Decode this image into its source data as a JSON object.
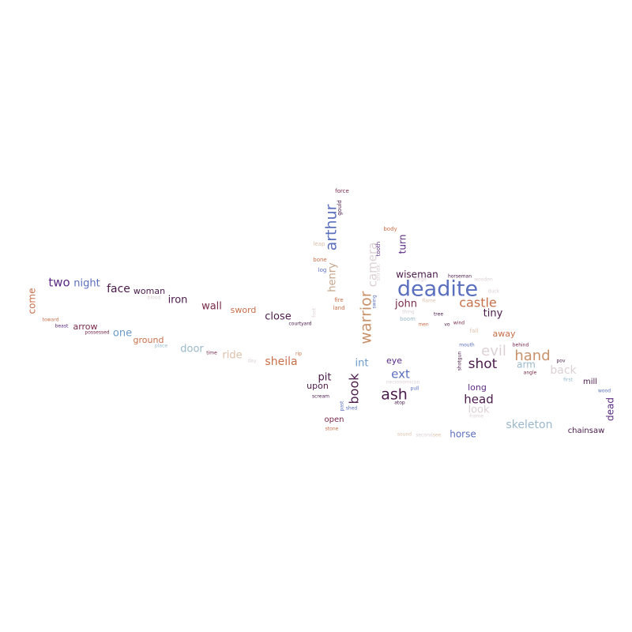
{
  "palette": {
    "blue": "#5b6fbf",
    "purple": "#5a2a82",
    "dark_plum": "#4a1a4a",
    "maroon": "#7a2a4a",
    "tan": "#c8a58a",
    "terracotta": "#c8704a",
    "light_blue": "#9ab8cc",
    "light_grey": "#ddd0d6"
  },
  "words": [
    {
      "text": "deadite",
      "color": "#5b6fbf"
    },
    {
      "text": "warrior",
      "color": "#c8926a"
    },
    {
      "text": "arthur",
      "color": "#5b6fbf"
    },
    {
      "text": "camera",
      "color": "#ddd0d6"
    },
    {
      "text": "ash",
      "color": "#4a1a4a"
    },
    {
      "text": "book",
      "color": "#4a1a4a"
    },
    {
      "text": "hand",
      "color": "#c8926a"
    },
    {
      "text": "evil",
      "color": "#ddd0d6"
    },
    {
      "text": "shot",
      "color": "#4a1a4a"
    },
    {
      "text": "castle",
      "color": "#c8704a"
    },
    {
      "text": "skeleton",
      "color": "#9ab8cc"
    },
    {
      "text": "head",
      "color": "#4a1a4a"
    },
    {
      "text": "back",
      "color": "#ddd0d6"
    },
    {
      "text": "ext",
      "color": "#5b6fbf"
    },
    {
      "text": "two",
      "color": "#5a2a82"
    },
    {
      "text": "night",
      "color": "#5b6fbf"
    },
    {
      "text": "face",
      "color": "#4a1a4a"
    },
    {
      "text": "henry",
      "color": "#c8a58a"
    },
    {
      "text": "turn",
      "color": "#5a2a82"
    },
    {
      "text": "wiseman",
      "color": "#4a1a4a"
    },
    {
      "text": "john",
      "color": "#7a2a4a"
    },
    {
      "text": "tiny",
      "color": "#4a1a4a"
    },
    {
      "text": "sheila",
      "color": "#c8704a"
    },
    {
      "text": "int",
      "color": "#6a9ac8"
    },
    {
      "text": "pit",
      "color": "#4a1a4a"
    },
    {
      "text": "iron",
      "color": "#4a1a4a"
    },
    {
      "text": "wall",
      "color": "#7a2a4a"
    },
    {
      "text": "close",
      "color": "#4a1a4a"
    },
    {
      "text": "ride",
      "color": "#ddc0aa"
    },
    {
      "text": "door",
      "color": "#9ab8cc"
    },
    {
      "text": "horse",
      "color": "#5b6fbf"
    },
    {
      "text": "look",
      "color": "#ddd0d6"
    },
    {
      "text": "come",
      "color": "#c8704a"
    },
    {
      "text": "one",
      "color": "#6a9ac8"
    },
    {
      "text": "arm",
      "color": "#9ab8cc"
    },
    {
      "text": "eye",
      "color": "#5a2a82"
    },
    {
      "text": "dead",
      "color": "#5a2a82"
    },
    {
      "text": "woman",
      "color": "#4a1a4a"
    },
    {
      "text": "sword",
      "color": "#c8704a"
    },
    {
      "text": "arrow",
      "color": "#7a2a4a"
    },
    {
      "text": "ground",
      "color": "#c8704a"
    },
    {
      "text": "upon",
      "color": "#4a1a4a"
    },
    {
      "text": "open",
      "color": "#7a2a4a"
    },
    {
      "text": "long",
      "color": "#5a2a82"
    },
    {
      "text": "away",
      "color": "#c8704a"
    },
    {
      "text": "mill",
      "color": "#4a1a4a"
    },
    {
      "text": "chainsaw",
      "color": "#4a1a4a"
    },
    {
      "text": "force",
      "color": "#7a2a4a"
    },
    {
      "text": "gould",
      "color": "#4a1a4a"
    },
    {
      "text": "body",
      "color": "#c8704a"
    },
    {
      "text": "tooth",
      "color": "#5a2a82"
    },
    {
      "text": "leap",
      "color": "#ddc0aa"
    },
    {
      "text": "bone",
      "color": "#c8704a"
    },
    {
      "text": "log",
      "color": "#5b6fbf"
    },
    {
      "text": "shriek",
      "color": "#ddd0d6"
    },
    {
      "text": "horseman",
      "color": "#4a1a4a"
    },
    {
      "text": "wooden",
      "color": "#ddd0d6"
    },
    {
      "text": "siege",
      "color": "#ddd0d6"
    },
    {
      "text": "duck",
      "color": "#ddd0d6"
    },
    {
      "text": "blood",
      "color": "#ddd0d6"
    },
    {
      "text": "fire",
      "color": "#c8704a"
    },
    {
      "text": "land",
      "color": "#c8704a"
    },
    {
      "text": "foot",
      "color": "#ddd0d6"
    },
    {
      "text": "swing",
      "color": "#5b6fbf"
    },
    {
      "text": "flame",
      "color": "#ddc0aa"
    },
    {
      "text": "thing",
      "color": "#ddd0d6"
    },
    {
      "text": "boom",
      "color": "#9ab8cc"
    },
    {
      "text": "men",
      "color": "#c8704a"
    },
    {
      "text": "tree",
      "color": "#4a1a4a"
    },
    {
      "text": "vo",
      "color": "#4a1a4a"
    },
    {
      "text": "wind",
      "color": "#7a2a4a"
    },
    {
      "text": "fall",
      "color": "#ddc0aa"
    },
    {
      "text": "courtyard",
      "color": "#4a1a4a"
    },
    {
      "text": "beast",
      "color": "#5a2a82"
    },
    {
      "text": "toward",
      "color": "#c8704a"
    },
    {
      "text": "possessed",
      "color": "#7a2a4a"
    },
    {
      "text": "place",
      "color": "#9ab8cc"
    },
    {
      "text": "time",
      "color": "#7a2a4a"
    },
    {
      "text": "day",
      "color": "#ddd0d6"
    },
    {
      "text": "rip",
      "color": "#c8704a"
    },
    {
      "text": "mouth",
      "color": "#5b6fbf"
    },
    {
      "text": "behind",
      "color": "#7a2a4a"
    },
    {
      "text": "shotgun",
      "color": "#4a1a4a"
    },
    {
      "text": "angle",
      "color": "#7a2a4a"
    },
    {
      "text": "pov",
      "color": "#4a1a4a"
    },
    {
      "text": "first",
      "color": "#9ab8cc"
    },
    {
      "text": "wood",
      "color": "#5b6fbf"
    },
    {
      "text": "necronomicon",
      "color": "#ddd0d6"
    },
    {
      "text": "pull",
      "color": "#5b6fbf"
    },
    {
      "text": "atop",
      "color": "#4a1a4a"
    },
    {
      "text": "scream",
      "color": "#4a1a4a"
    },
    {
      "text": "past",
      "color": "#5b6fbf"
    },
    {
      "text": "shed",
      "color": "#5b6fbf"
    },
    {
      "text": "stone",
      "color": "#c8704a"
    },
    {
      "text": "sound",
      "color": "#ddc0aa"
    },
    {
      "text": "second",
      "color": "#ddd0d6"
    },
    {
      "text": "see",
      "color": "#ddc0aa"
    },
    {
      "text": "frame",
      "color": "#ddd0d6"
    }
  ]
}
